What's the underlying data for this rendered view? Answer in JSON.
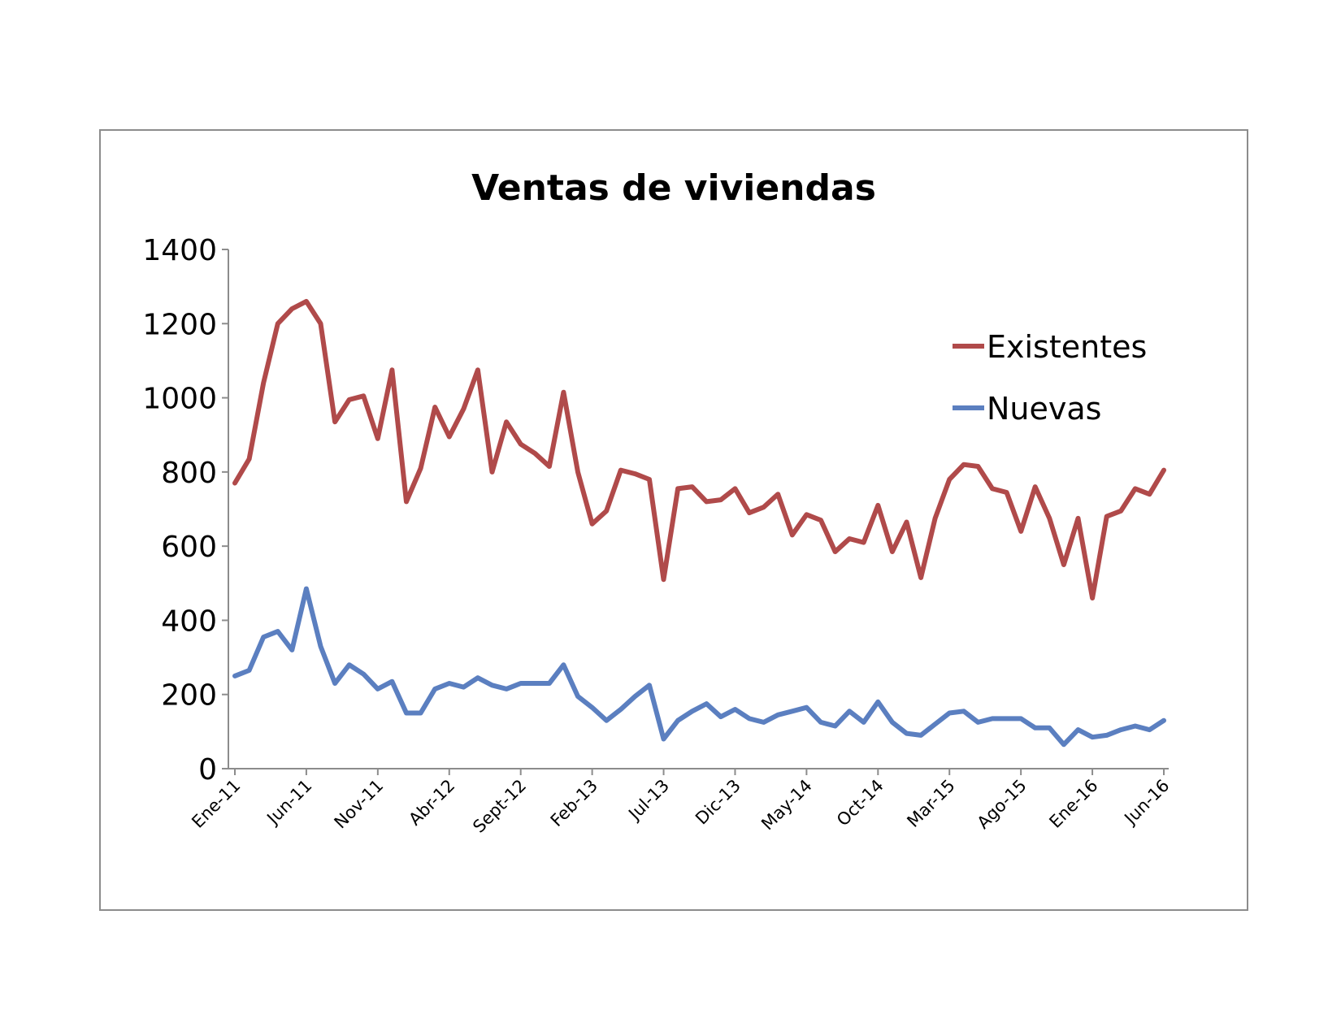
{
  "chart_data": {
    "type": "line",
    "title": "Ventas de viviendas",
    "xlabel": "",
    "ylabel": "",
    "ylim": [
      0,
      1400
    ],
    "yticks": [
      "0",
      "200",
      "400",
      "600",
      "800",
      "1000",
      "1200",
      "1400"
    ],
    "xtick_labels": [
      "Ene-11",
      "Jun-11",
      "Nov-11",
      "Abr-12",
      "Sept-12",
      "Feb-13",
      "Jul-13",
      "Dic-13",
      "May-14",
      "Oct-14",
      "Mar-15",
      "Ago-15",
      "Ene-16",
      "Jun-16"
    ],
    "legend_position": "top-right",
    "grid": false,
    "series": [
      {
        "name": "Existentes",
        "color": "#b04a4a",
        "values": [
          770,
          835,
          1040,
          1200,
          1240,
          1260,
          1200,
          935,
          995,
          1005,
          890,
          1075,
          720,
          810,
          975,
          895,
          970,
          1075,
          800,
          935,
          875,
          850,
          815,
          1015,
          800,
          660,
          695,
          805,
          795,
          780,
          510,
          755,
          760,
          720,
          725,
          755,
          690,
          705,
          740,
          630,
          685,
          670,
          585,
          620,
          610,
          710,
          585,
          665,
          515,
          675,
          780,
          820,
          815,
          755,
          745,
          640,
          760,
          675,
          550,
          675,
          460,
          680,
          695,
          755,
          740,
          805
        ]
      },
      {
        "name": "Nuevas",
        "color": "#5b7fc0",
        "values": [
          250,
          265,
          355,
          370,
          320,
          485,
          330,
          230,
          280,
          255,
          215,
          235,
          150,
          150,
          215,
          230,
          220,
          245,
          225,
          215,
          230,
          230,
          230,
          280,
          195,
          165,
          130,
          160,
          195,
          225,
          80,
          130,
          155,
          175,
          140,
          160,
          135,
          125,
          145,
          155,
          165,
          125,
          115,
          155,
          125,
          180,
          125,
          95,
          90,
          120,
          150,
          155,
          125,
          135,
          135,
          135,
          110,
          110,
          65,
          105,
          85,
          90,
          105,
          115,
          105,
          130
        ]
      }
    ]
  }
}
